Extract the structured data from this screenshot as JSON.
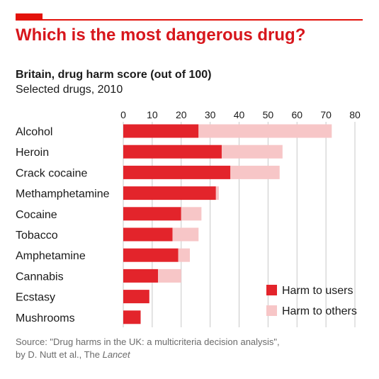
{
  "title": "Which is the most dangerous drug?",
  "subtitle": "Britain, drug harm score (out of 100)",
  "subtitle2": "Selected drugs, 2010",
  "source_line1": "Source: \"Drug harms in the UK: a multicriteria decision analysis\",",
  "source_line2": "by D. Nutt et al., The ",
  "source_journal": "Lancet",
  "colors": {
    "accent": "#e3120b",
    "harm_users": "#e3242b",
    "harm_others": "#f7c6c7",
    "gridline": "#c8c8c8"
  },
  "chart_data": {
    "type": "bar",
    "orientation": "horizontal",
    "stacked": true,
    "categories": [
      "Alcohol",
      "Heroin",
      "Crack cocaine",
      "Methamphetamine",
      "Cocaine",
      "Tobacco",
      "Amphetamine",
      "Cannabis",
      "Ecstasy",
      "Mushrooms"
    ],
    "series": [
      {
        "name": "Harm to users",
        "values": [
          26,
          34,
          37,
          32,
          20,
          17,
          19,
          12,
          9,
          6
        ]
      },
      {
        "name": "Harm to others",
        "values": [
          46,
          21,
          17,
          1,
          7,
          9,
          4,
          8,
          0,
          0
        ]
      }
    ],
    "xticks": [
      0,
      10,
      20,
      30,
      40,
      50,
      60,
      70,
      80
    ],
    "xlim": [
      0,
      80
    ],
    "grid": true,
    "legend_position": "bottom-right",
    "xlabel": "",
    "ylabel": ""
  }
}
